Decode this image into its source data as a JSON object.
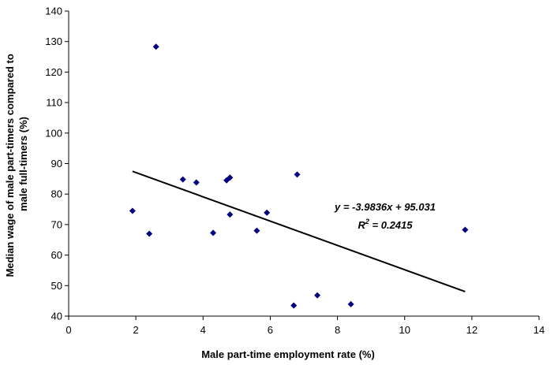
{
  "chart_data": {
    "type": "scatter",
    "xlabel": "Male part-time employment rate (%)",
    "ylabel_lines": [
      "Median wage of male part-timers compared to",
      "male full-timers (%)"
    ],
    "xlim": [
      0,
      14
    ],
    "ylim": [
      40,
      140
    ],
    "xticks": [
      0,
      2,
      4,
      6,
      8,
      10,
      12,
      14
    ],
    "yticks": [
      40,
      50,
      60,
      70,
      80,
      90,
      100,
      110,
      120,
      130,
      140
    ],
    "grid": false,
    "marker_color": "#000080",
    "line_color": "#000000",
    "points": [
      {
        "x": 1.9,
        "y": 74.5
      },
      {
        "x": 2.4,
        "y": 67.0
      },
      {
        "x": 2.6,
        "y": 128.3
      },
      {
        "x": 3.4,
        "y": 84.8
      },
      {
        "x": 3.8,
        "y": 83.8
      },
      {
        "x": 4.3,
        "y": 67.3
      },
      {
        "x": 4.7,
        "y": 84.5
      },
      {
        "x": 4.8,
        "y": 85.4
      },
      {
        "x": 4.8,
        "y": 73.3
      },
      {
        "x": 5.6,
        "y": 68.0
      },
      {
        "x": 5.9,
        "y": 73.9
      },
      {
        "x": 6.7,
        "y": 43.5
      },
      {
        "x": 6.8,
        "y": 86.4
      },
      {
        "x": 7.4,
        "y": 46.8
      },
      {
        "x": 8.4,
        "y": 43.9
      },
      {
        "x": 11.8,
        "y": 68.3
      }
    ],
    "trendline": {
      "slope": -3.9836,
      "intercept": 95.031,
      "x_start": 1.9,
      "x_end": 11.8,
      "equation_label": "y = -3.9836x + 95.031",
      "r2_label_prefix": "R",
      "r2_label_suffix": " = 0.2415",
      "r2_superscript": "2"
    }
  }
}
